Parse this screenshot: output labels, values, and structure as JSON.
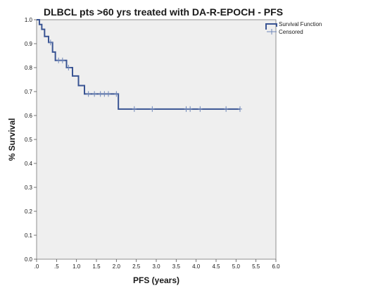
{
  "chart_data": {
    "type": "line",
    "title": "DLBCL pts >60 yrs treated with DA-R-EPOCH - PFS",
    "xlabel": "PFS (years)",
    "ylabel": "% Survival",
    "xlim": [
      0,
      6.0
    ],
    "ylim": [
      0,
      1.0
    ],
    "x_ticks": [
      ".0",
      ".5",
      "1.0",
      "1.5",
      "2.0",
      "2.5",
      "3.0",
      "3.5",
      "4.0",
      "4.5",
      "5.0",
      "5.5",
      "6.0"
    ],
    "y_ticks": [
      "0.0",
      "0.1",
      "0.2",
      "0.3",
      "0.4",
      "0.5",
      "0.6",
      "0.7",
      "0.8",
      "0.9",
      "1.0"
    ],
    "legend_position": "top-right",
    "grid": false,
    "colors": {
      "survival": "#3a5493",
      "plot_bg": "#efefef",
      "censored": "#6f87b8"
    },
    "series": [
      {
        "name": "Survival Function",
        "steps": [
          [
            0,
            1.0
          ],
          [
            0.07,
            0.98
          ],
          [
            0.13,
            0.96
          ],
          [
            0.2,
            0.93
          ],
          [
            0.3,
            0.905
          ],
          [
            0.4,
            0.865
          ],
          [
            0.47,
            0.83
          ],
          [
            0.75,
            0.8
          ],
          [
            0.9,
            0.765
          ],
          [
            1.05,
            0.725
          ],
          [
            1.2,
            0.69
          ],
          [
            2.05,
            0.627
          ],
          [
            5.1,
            0.627
          ]
        ]
      },
      {
        "name": "Censored",
        "points": [
          [
            0.35,
            0.905
          ],
          [
            0.55,
            0.83
          ],
          [
            0.65,
            0.83
          ],
          [
            0.8,
            0.8
          ],
          [
            1.3,
            0.69
          ],
          [
            1.45,
            0.69
          ],
          [
            1.6,
            0.69
          ],
          [
            1.7,
            0.69
          ],
          [
            1.8,
            0.69
          ],
          [
            2.0,
            0.69
          ],
          [
            2.45,
            0.627
          ],
          [
            2.9,
            0.627
          ],
          [
            3.75,
            0.627
          ],
          [
            3.85,
            0.627
          ],
          [
            4.1,
            0.627
          ],
          [
            4.75,
            0.627
          ],
          [
            5.1,
            0.627
          ]
        ]
      }
    ]
  }
}
